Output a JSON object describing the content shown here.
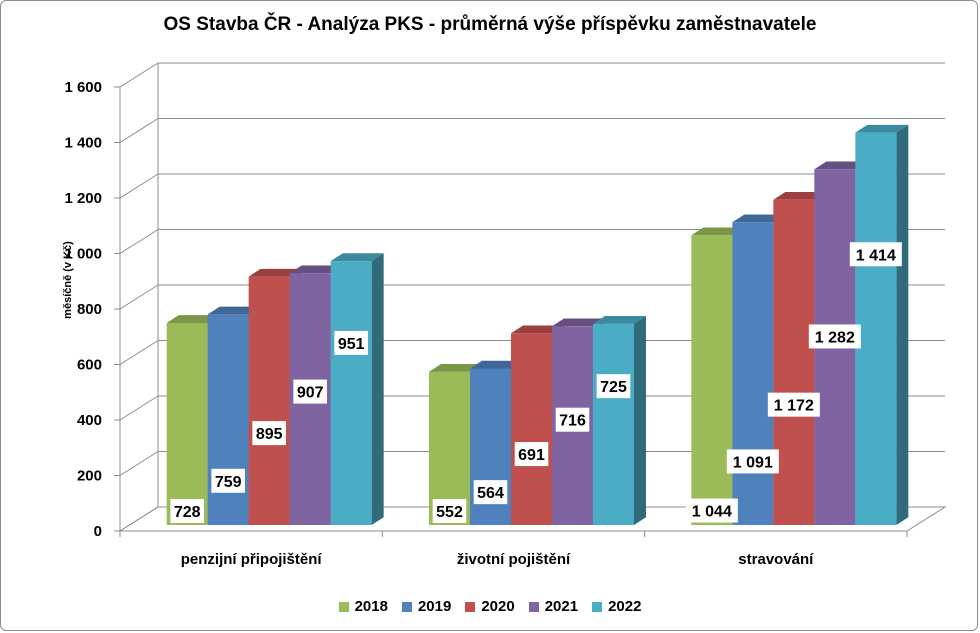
{
  "chart_data": {
    "type": "bar",
    "title": "OS Stavba ČR - Analýza PKS - průměrná výše příspěvku zaměstnavatele",
    "xlabel": "",
    "ylabel": "měsíčně (v Kč)",
    "ylim": [
      0,
      1600
    ],
    "yticks": [
      0,
      200,
      400,
      600,
      800,
      1000,
      1200,
      1400,
      1600
    ],
    "ytick_labels": [
      "0",
      "200",
      "400",
      "600",
      "800",
      "1 000",
      "1 200",
      "1 400",
      "1 600"
    ],
    "grid": true,
    "legend_position": "bottom",
    "categories": [
      "penzijní připojištění",
      "životní pojištění",
      "stravování"
    ],
    "series": [
      {
        "name": "2018",
        "color": "#9BBB59",
        "values": [
          728,
          552,
          1044
        ],
        "labels": [
          "728",
          "552",
          "1 044"
        ]
      },
      {
        "name": "2019",
        "color": "#4F81BD",
        "values": [
          759,
          564,
          1091
        ],
        "labels": [
          "759",
          "564",
          "1 091"
        ]
      },
      {
        "name": "2020",
        "color": "#C0504D",
        "values": [
          895,
          691,
          1172
        ],
        "labels": [
          "895",
          "691",
          "1 172"
        ]
      },
      {
        "name": "2021",
        "color": "#8064A2",
        "values": [
          907,
          716,
          1282
        ],
        "labels": [
          "907",
          "716",
          "1 282"
        ]
      },
      {
        "name": "2022",
        "color": "#4BACC6",
        "values": [
          951,
          725,
          1414
        ],
        "labels": [
          "951",
          "725",
          "1 414"
        ]
      }
    ]
  }
}
